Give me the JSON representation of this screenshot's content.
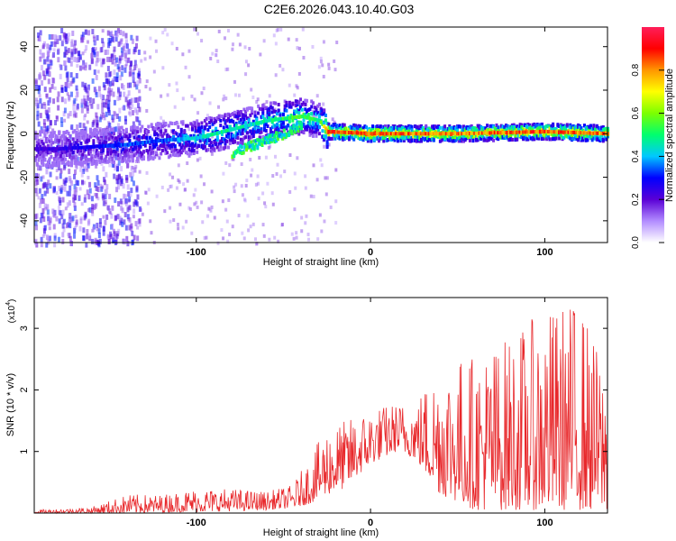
{
  "title": "C2E6.2026.043.10.40.G03",
  "colors": {
    "signal": "#e8282b",
    "axis": "#000000",
    "background": "#ffffff"
  },
  "chart_data": [
    {
      "type": "heatmap",
      "xlabel": "Height of straight line (km)",
      "ylabel": "Frequency (Hz)",
      "xlim": [
        -193,
        136
      ],
      "ylim": [
        -50,
        49
      ],
      "xticks": [
        -100,
        0,
        100
      ],
      "yticks": [
        -40,
        -20,
        0,
        20,
        40
      ],
      "colorbar": {
        "label": "Normalized spectral amplitude",
        "range": [
          0,
          1
        ],
        "ticks": [
          "0.0",
          "0.2",
          "0.4",
          "0.6",
          "0.8"
        ],
        "colormap": [
          "#ffffff",
          "#b28cff",
          "#5a00d6",
          "#0000ff",
          "#00c8ff",
          "#00ff6e",
          "#7cff00",
          "#ffff00",
          "#ff9600",
          "#ff0000",
          "#ff1e5a"
        ]
      },
      "ridge": {
        "description_free_points_x": [
          -180,
          -160,
          -140,
          -120,
          -100,
          -90,
          -80,
          -70,
          -60,
          -50,
          -40,
          -30,
          -25,
          0,
          50,
          100,
          136
        ],
        "frequency": [
          -7,
          -6,
          -5,
          -3,
          -2,
          0,
          2,
          4,
          6,
          7,
          8,
          6,
          1,
          0,
          0,
          1,
          0
        ],
        "amplitude": [
          0.25,
          0.3,
          0.35,
          0.35,
          0.45,
          0.5,
          0.5,
          0.45,
          0.5,
          0.55,
          0.6,
          0.5,
          0.9,
          0.9,
          0.85,
          0.9,
          0.85
        ]
      },
      "secondary_ridge": {
        "x": [
          -80,
          -70,
          -60,
          -50,
          -40
        ],
        "frequency": [
          -9,
          -6,
          -3,
          0,
          4
        ],
        "amplitude": [
          0.6,
          0.6,
          0.55,
          0.6,
          0.6
        ]
      }
    },
    {
      "type": "line",
      "xlabel": "Height of straight line (km)",
      "ylabel": "SNR (10 * v/v)",
      "scale_label": "(x10",
      "scale_exp": "4",
      "scale_close": ")",
      "xlim": [
        -193,
        136
      ],
      "ylim": [
        0,
        3.5
      ],
      "xticks": [
        -100,
        0,
        100
      ],
      "yticks": [
        1,
        2,
        3
      ],
      "series": [
        {
          "name": "SNR",
          "color": "#e8282b",
          "envelope_x": [
            -193,
            -160,
            -140,
            -120,
            -100,
            -80,
            -60,
            -45,
            -35,
            -25,
            -15,
            0,
            15,
            25,
            40,
            60,
            80,
            100,
            120,
            136
          ],
          "envelope_max": [
            0.05,
            0.1,
            0.3,
            0.3,
            0.4,
            0.4,
            0.35,
            0.45,
            0.9,
            1.4,
            1.5,
            1.7,
            1.8,
            1.8,
            2.5,
            2.6,
            2.9,
            3.3,
            3.5,
            2.2
          ],
          "envelope_min": [
            0.0,
            0.0,
            0.0,
            0.01,
            0.02,
            0.03,
            0.05,
            0.08,
            0.15,
            0.3,
            0.4,
            0.8,
            1.0,
            0.9,
            0.3,
            0.05,
            0.05,
            0.05,
            0.05,
            0.05
          ]
        }
      ]
    }
  ]
}
